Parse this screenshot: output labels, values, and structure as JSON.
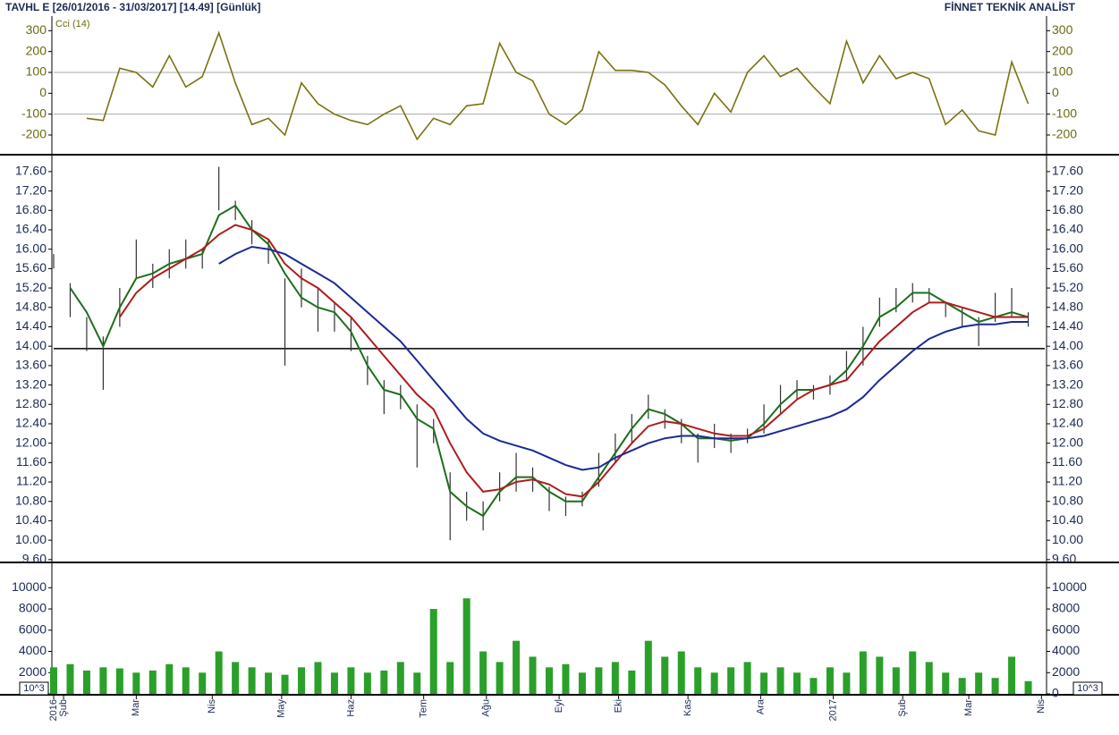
{
  "header": {
    "title": "TAVHL E  [26/01/2016 - 31/03/2017]  [14.49]  [Günlük]",
    "brand": "FİNNET TEKNİK ANALİST"
  },
  "chart_data": [
    {
      "type": "line",
      "title": "Cci (14)",
      "color": "#7a7310",
      "xlim": [
        0,
        300
      ],
      "ylim": [
        -290,
        370
      ],
      "yticks": [
        300,
        200,
        100,
        0,
        -100,
        -200
      ],
      "grid_at": [
        100,
        -100
      ],
      "x": [
        10,
        15,
        20,
        25,
        30,
        35,
        40,
        45,
        50,
        55,
        60,
        65,
        70,
        75,
        80,
        85,
        90,
        95,
        100,
        105,
        110,
        115,
        120,
        125,
        130,
        135,
        140,
        145,
        150,
        155,
        160,
        165,
        170,
        175,
        180,
        185,
        190,
        195,
        200,
        205,
        210,
        215,
        220,
        225,
        230,
        235,
        240,
        245,
        250,
        255,
        260,
        265,
        270,
        275,
        280,
        285,
        290,
        295
      ],
      "values": [
        -120,
        -130,
        120,
        100,
        30,
        180,
        30,
        80,
        290,
        50,
        -150,
        -120,
        -200,
        50,
        -50,
        -100,
        -130,
        -150,
        -100,
        -60,
        -220,
        -120,
        -150,
        -60,
        -50,
        240,
        100,
        60,
        -100,
        -150,
        -80,
        200,
        110,
        110,
        100,
        40,
        -60,
        -150,
        0,
        -90,
        100,
        180,
        80,
        120,
        30,
        -50,
        250,
        50,
        180,
        70,
        100,
        70,
        -150,
        -80,
        -180,
        -200,
        150,
        -50
      ]
    },
    {
      "type": "ohlc",
      "color": "#333333",
      "xlim": [
        0,
        300
      ],
      "ylim": [
        9.56,
        17.93
      ],
      "yticks": [
        {
          "value": 17.6,
          "label": "17.60"
        },
        {
          "value": 17.2,
          "label": "17.20"
        },
        {
          "value": 16.8,
          "label": "16.80"
        },
        {
          "value": 16.4,
          "label": "16.40"
        },
        {
          "value": 16.0,
          "label": "16.00"
        },
        {
          "value": 15.6,
          "label": "15.60"
        },
        {
          "value": 15.2,
          "label": "15.20"
        },
        {
          "value": 14.8,
          "label": "14.80"
        },
        {
          "value": 14.4,
          "label": "14.40"
        },
        {
          "value": 14.0,
          "label": "14.00"
        },
        {
          "value": 13.6,
          "label": "13.60"
        },
        {
          "value": 13.2,
          "label": "13.20"
        },
        {
          "value": 12.8,
          "label": "12.80"
        },
        {
          "value": 12.4,
          "label": "12.40"
        },
        {
          "value": 12.0,
          "label": "12.00"
        },
        {
          "value": 11.6,
          "label": "11.60"
        },
        {
          "value": 11.2,
          "label": "11.20"
        },
        {
          "value": 10.8,
          "label": "10.80"
        },
        {
          "value": 10.4,
          "label": "10.40"
        },
        {
          "value": 10.0,
          "label": "10.00"
        },
        {
          "value": 9.6,
          "label": "9.60"
        }
      ],
      "hline": 13.95,
      "x": [
        0,
        5,
        10,
        15,
        20,
        25,
        30,
        35,
        40,
        45,
        50,
        55,
        60,
        65,
        70,
        75,
        80,
        85,
        90,
        95,
        100,
        105,
        110,
        115,
        120,
        125,
        130,
        135,
        140,
        145,
        150,
        155,
        160,
        165,
        170,
        175,
        180,
        185,
        190,
        195,
        200,
        205,
        210,
        215,
        220,
        225,
        230,
        235,
        240,
        245,
        250,
        255,
        260,
        265,
        270,
        275,
        280,
        285,
        290,
        295
      ],
      "high": [
        15.9,
        15.3,
        14.6,
        14.2,
        15.2,
        16.2,
        15.7,
        16.0,
        16.2,
        16.0,
        17.7,
        17.0,
        16.6,
        16.2,
        15.4,
        15.6,
        15.2,
        14.9,
        14.6,
        13.8,
        13.3,
        13.2,
        12.8,
        12.5,
        11.4,
        11.0,
        10.8,
        11.4,
        11.8,
        11.5,
        11.1,
        10.9,
        11.0,
        11.8,
        12.2,
        12.6,
        13.0,
        12.7,
        12.5,
        12.2,
        12.4,
        12.2,
        12.3,
        12.8,
        13.2,
        13.3,
        13.2,
        13.4,
        13.9,
        14.4,
        15.0,
        15.2,
        15.3,
        15.2,
        14.9,
        14.8,
        14.6,
        15.1,
        15.2,
        14.7
      ],
      "low": [
        15.6,
        14.6,
        13.9,
        13.1,
        14.4,
        15.4,
        15.2,
        15.4,
        15.6,
        15.6,
        16.8,
        16.6,
        16.1,
        15.7,
        13.6,
        14.8,
        14.3,
        14.3,
        13.9,
        13.2,
        12.6,
        12.7,
        11.5,
        12.0,
        10.0,
        10.4,
        10.2,
        10.8,
        11.0,
        11.0,
        10.6,
        10.5,
        10.7,
        11.1,
        11.6,
        12.0,
        12.5,
        12.3,
        12.0,
        11.6,
        11.9,
        11.8,
        12.0,
        12.2,
        12.6,
        12.9,
        12.9,
        13.0,
        13.3,
        13.6,
        14.4,
        14.7,
        14.9,
        14.9,
        14.6,
        14.4,
        14.0,
        14.5,
        14.6,
        14.4
      ],
      "series": [
        {
          "color": "#1e6e1e",
          "values": [
            null,
            15.2,
            14.7,
            14.0,
            14.8,
            15.4,
            15.5,
            15.7,
            15.8,
            15.9,
            16.7,
            16.9,
            16.4,
            16.1,
            15.5,
            15.0,
            14.8,
            14.7,
            14.3,
            13.6,
            13.1,
            13.0,
            12.5,
            12.3,
            11.0,
            10.7,
            10.5,
            11.0,
            11.3,
            11.3,
            11.0,
            10.8,
            10.8,
            11.3,
            11.8,
            12.3,
            12.7,
            12.6,
            12.4,
            12.1,
            12.1,
            12.05,
            12.1,
            12.4,
            12.8,
            13.1,
            13.1,
            13.2,
            13.5,
            14.0,
            14.6,
            14.8,
            15.1,
            15.1,
            14.9,
            14.7,
            14.5,
            14.6,
            14.7,
            14.6
          ]
        },
        {
          "color": "#b01c1c",
          "values": [
            null,
            null,
            null,
            null,
            14.6,
            15.1,
            15.4,
            15.6,
            15.8,
            16.0,
            16.3,
            16.5,
            16.4,
            16.2,
            15.7,
            15.4,
            15.2,
            14.9,
            14.6,
            14.2,
            13.8,
            13.4,
            13.0,
            12.7,
            12.0,
            11.4,
            11.0,
            11.05,
            11.2,
            11.25,
            11.15,
            10.95,
            10.9,
            11.2,
            11.6,
            12.0,
            12.35,
            12.45,
            12.4,
            12.3,
            12.2,
            12.15,
            12.15,
            12.3,
            12.6,
            12.9,
            13.1,
            13.2,
            13.3,
            13.7,
            14.1,
            14.4,
            14.7,
            14.9,
            14.9,
            14.8,
            14.7,
            14.6,
            14.6,
            14.6
          ]
        },
        {
          "color": "#1a2a96",
          "values": [
            null,
            null,
            null,
            null,
            null,
            null,
            null,
            null,
            null,
            null,
            15.7,
            15.9,
            16.05,
            16.0,
            15.9,
            15.7,
            15.5,
            15.3,
            15.0,
            14.7,
            14.4,
            14.1,
            13.7,
            13.3,
            12.9,
            12.5,
            12.2,
            12.05,
            11.95,
            11.85,
            11.7,
            11.55,
            11.45,
            11.5,
            11.7,
            11.85,
            12.0,
            12.1,
            12.15,
            12.15,
            12.1,
            12.1,
            12.1,
            12.15,
            12.25,
            12.35,
            12.45,
            12.55,
            12.7,
            12.95,
            13.3,
            13.6,
            13.9,
            14.15,
            14.3,
            14.4,
            14.45,
            14.45,
            14.5,
            14.5
          ]
        }
      ]
    },
    {
      "type": "bar",
      "color": "#2aa02a",
      "unit_label": "10^3",
      "xlim": [
        0,
        300
      ],
      "ylim": [
        0,
        12300
      ],
      "yticks": [
        10000,
        8000,
        6000,
        4000,
        2000,
        0
      ],
      "x": [
        0,
        5,
        10,
        15,
        20,
        25,
        30,
        35,
        40,
        45,
        50,
        55,
        60,
        65,
        70,
        75,
        80,
        85,
        90,
        95,
        100,
        105,
        110,
        115,
        120,
        125,
        130,
        135,
        140,
        145,
        150,
        155,
        160,
        165,
        170,
        175,
        180,
        185,
        190,
        195,
        200,
        205,
        210,
        215,
        220,
        225,
        230,
        235,
        240,
        245,
        250,
        255,
        260,
        265,
        270,
        275,
        280,
        285,
        290,
        295
      ],
      "values": [
        2500,
        2800,
        2200,
        2500,
        2400,
        2000,
        2200,
        2800,
        2500,
        2000,
        4000,
        3000,
        2500,
        2000,
        1800,
        2500,
        3000,
        2000,
        2500,
        2000,
        2200,
        3000,
        2000,
        8000,
        3000,
        9000,
        4000,
        3000,
        5000,
        3500,
        2500,
        2800,
        2000,
        2500,
        3000,
        2200,
        5000,
        3500,
        4000,
        2500,
        2000,
        2500,
        3000,
        2000,
        2500,
        2000,
        1500,
        2500,
        2000,
        4000,
        3500,
        2500,
        4000,
        3000,
        2000,
        1500,
        2000,
        1500,
        3500,
        1200
      ],
      "xticks": [
        {
          "value": 0,
          "label": "2016"
        },
        {
          "value": 3,
          "label": "Şub"
        },
        {
          "value": 25,
          "label": "Mar"
        },
        {
          "value": 48,
          "label": "Nis"
        },
        {
          "value": 69,
          "label": "May"
        },
        {
          "value": 90,
          "label": "Haz"
        },
        {
          "value": 112,
          "label": "Tem"
        },
        {
          "value": 131,
          "label": "Ağu"
        },
        {
          "value": 153,
          "label": "Eyl"
        },
        {
          "value": 171,
          "label": "Eki"
        },
        {
          "value": 192,
          "label": "Kas"
        },
        {
          "value": 214,
          "label": "Ara"
        },
        {
          "value": 236,
          "label": "2017"
        },
        {
          "value": 257,
          "label": "Şub"
        },
        {
          "value": 277,
          "label": "Mar"
        },
        {
          "value": 299,
          "label": "Nis"
        }
      ]
    }
  ]
}
